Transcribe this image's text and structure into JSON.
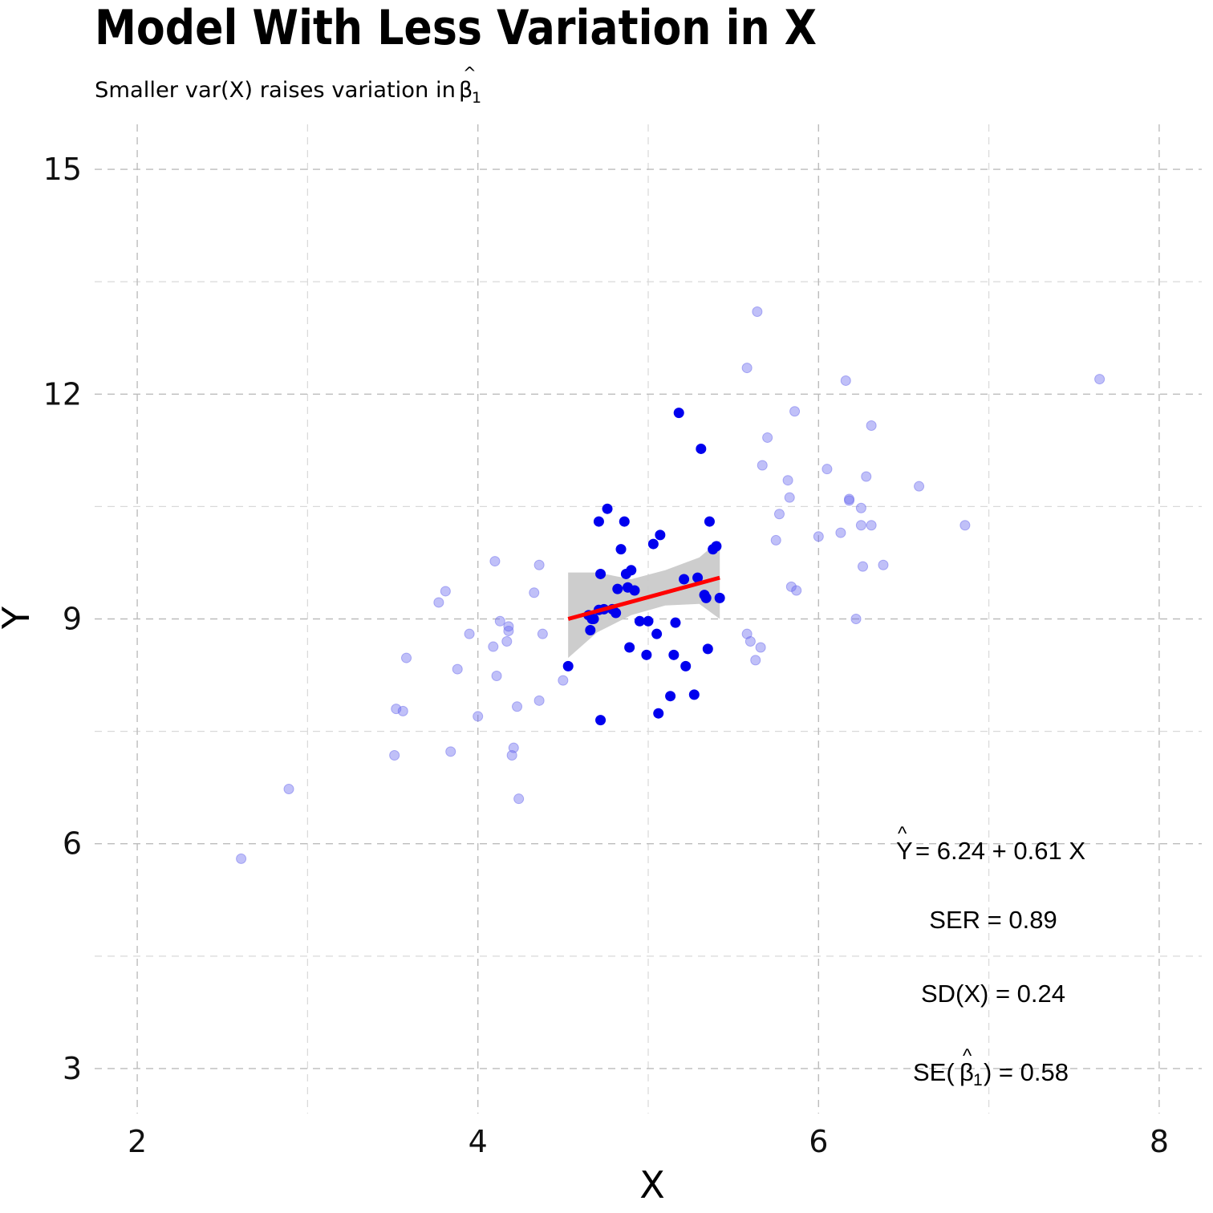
{
  "chart_data": {
    "type": "scatter",
    "title": "Model With Less Variation in X",
    "subtitle_text": "Smaller var(X) raises variation in ",
    "subtitle_beta_symbol": "β",
    "subtitle_beta_subscript": "1",
    "xlabel": "X",
    "ylabel": "Y",
    "xlim": [
      1.75,
      8.25
    ],
    "ylim": [
      2.4,
      15.6
    ],
    "x_ticks": [
      "2",
      "4",
      "6",
      "8"
    ],
    "x_tick_values": [
      2,
      4,
      6,
      8
    ],
    "y_ticks": [
      "3",
      "6",
      "9",
      "12",
      "15"
    ],
    "y_tick_values": [
      3,
      6,
      9,
      12,
      15
    ],
    "x_minor_values": [
      3,
      5,
      7
    ],
    "y_minor_values": [
      4.5,
      7.5,
      10.5,
      13.5
    ],
    "grid": true,
    "colors": {
      "background_points": "#6a6aee",
      "highlight_points": "#0000ee",
      "fit_line": "#ff0000",
      "confidence_band": "#c8c8c8"
    },
    "series": [
      {
        "name": "",
        "role": "full sample (faded)",
        "x": [
          2.61,
          2.89,
          3.51,
          3.52,
          3.56,
          3.58,
          3.77,
          3.81,
          3.84,
          3.88,
          3.95,
          4.0,
          4.09,
          4.1,
          4.11,
          4.13,
          4.17,
          4.18,
          4.18,
          4.2,
          4.21,
          4.23,
          4.24,
          4.33,
          4.36,
          4.36,
          4.38,
          4.5,
          5.58,
          5.58,
          5.6,
          5.63,
          5.64,
          5.66,
          5.67,
          5.7,
          5.75,
          5.77,
          5.82,
          5.83,
          5.84,
          5.86,
          5.87,
          6.0,
          6.05,
          6.13,
          6.16,
          6.18,
          6.18,
          6.22,
          6.25,
          6.25,
          6.26,
          6.28,
          6.31,
          6.31,
          6.38,
          6.59,
          6.86,
          7.65
        ],
        "y": [
          5.8,
          6.73,
          7.18,
          7.8,
          7.77,
          8.48,
          9.22,
          9.37,
          7.23,
          8.33,
          8.8,
          7.7,
          8.63,
          9.77,
          8.24,
          8.97,
          8.7,
          8.84,
          8.9,
          7.18,
          7.28,
          7.83,
          6.6,
          9.35,
          9.72,
          7.91,
          8.8,
          8.18,
          12.35,
          8.8,
          8.7,
          8.45,
          13.1,
          8.62,
          11.05,
          11.42,
          10.05,
          10.4,
          10.85,
          10.62,
          9.43,
          11.77,
          9.38,
          10.1,
          11.0,
          10.15,
          12.18,
          10.6,
          10.58,
          9.0,
          10.48,
          10.25,
          9.7,
          10.9,
          11.58,
          10.25,
          9.72,
          10.77,
          10.25,
          12.2
        ]
      },
      {
        "name": "",
        "role": "restricted sample (highlighted)",
        "x": [
          4.53,
          4.65,
          4.66,
          4.67,
          4.68,
          4.71,
          4.71,
          4.72,
          4.72,
          4.74,
          4.76,
          4.79,
          4.81,
          4.82,
          4.84,
          4.86,
          4.87,
          4.88,
          4.89,
          4.9,
          4.92,
          4.95,
          4.99,
          5.0,
          5.03,
          5.05,
          5.06,
          5.07,
          5.13,
          5.15,
          5.16,
          5.18,
          5.21,
          5.22,
          5.27,
          5.29,
          5.31,
          5.33,
          5.34,
          5.35,
          5.36,
          5.38,
          5.4,
          5.42
        ],
        "y": [
          8.37,
          9.05,
          8.85,
          9.0,
          9.0,
          10.3,
          9.12,
          9.6,
          7.65,
          9.13,
          10.47,
          9.13,
          9.08,
          9.4,
          9.93,
          10.3,
          9.6,
          9.42,
          8.62,
          9.65,
          9.38,
          8.97,
          8.52,
          8.97,
          10.0,
          8.8,
          7.74,
          10.12,
          7.97,
          8.52,
          8.95,
          11.75,
          9.53,
          8.37,
          7.99,
          9.55,
          11.27,
          9.32,
          9.28,
          8.6,
          10.3,
          9.93,
          9.97,
          9.28
        ]
      }
    ],
    "fit_line": {
      "x": [
        4.53,
        5.42
      ],
      "y": [
        9.0,
        9.55
      ],
      "band_x": [
        4.53,
        4.7,
        4.9,
        5.1,
        5.3,
        5.42
      ],
      "band_lower": [
        8.48,
        8.82,
        9.05,
        9.18,
        9.2,
        9.0
      ],
      "band_upper": [
        9.62,
        9.62,
        9.53,
        9.65,
        9.82,
        10.05
      ]
    },
    "annotations": {
      "equation_lhs": "Y",
      "equation_rhs": "= 6.24 + 0.61 X",
      "ser_text": "SER = 0.89",
      "sdx_text": "SD(X) = 0.24",
      "se_prefix": "SE(",
      "se_beta_symbol": "β",
      "se_beta_subscript": "1",
      "se_suffix": ") = 0.58"
    }
  }
}
